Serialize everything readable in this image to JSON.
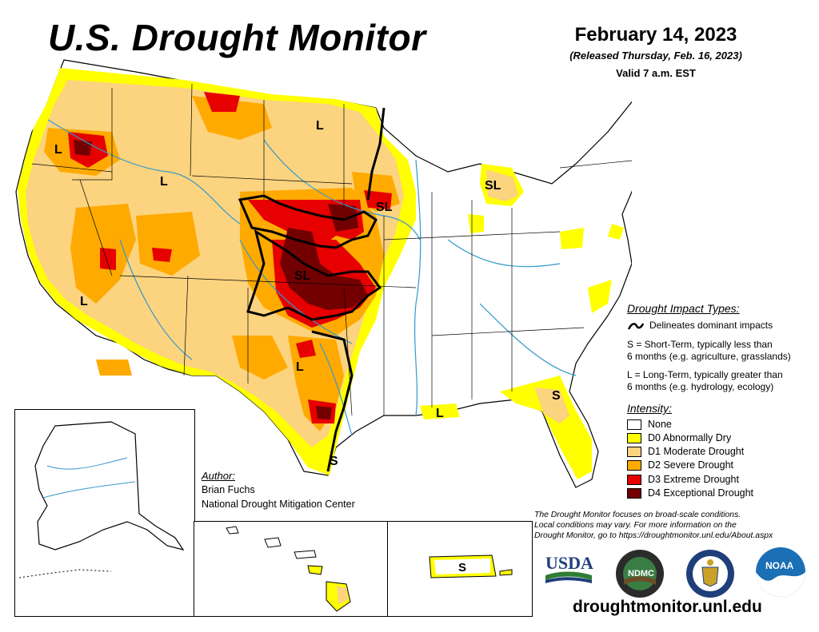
{
  "header": {
    "title": "U.S. Drought Monitor",
    "date": "February 14, 2023",
    "released": "(Released Thursday, Feb. 16, 2023)",
    "valid": "Valid 7 a.m. EST"
  },
  "map": {
    "impact_labels": [
      "L",
      "L",
      "L",
      "L",
      "L",
      "L",
      "L",
      "L",
      "S",
      "S",
      "S",
      "SL",
      "SL",
      "SL"
    ]
  },
  "impact_legend": {
    "title": "Drought Impact Types:",
    "line_label": "Delineates dominant impacts",
    "short_term_line1": "S = Short-Term, typically less than",
    "short_term_line2": "6 months (e.g. agriculture, grasslands)",
    "long_term_line1": "L = Long-Term, typically greater than",
    "long_term_line2": "6 months (e.g. hydrology, ecology)"
  },
  "intensity_legend": {
    "title": "Intensity:",
    "items": [
      {
        "label": "None",
        "color": "#ffffff"
      },
      {
        "label": "D0 Abnormally Dry",
        "color": "#ffff00"
      },
      {
        "label": "D1 Moderate Drought",
        "color": "#fcd37f"
      },
      {
        "label": "D2 Severe Drought",
        "color": "#ffaa00"
      },
      {
        "label": "D3 Extreme Drought",
        "color": "#e60000"
      },
      {
        "label": "D4 Exceptional Drought",
        "color": "#730000"
      }
    ]
  },
  "author": {
    "label": "Author:",
    "name": "Brian Fuchs",
    "organization": "National Drought Mitigation Center"
  },
  "disclaimer": {
    "line1": "The Drought Monitor focuses on broad-scale conditions.",
    "line2": "Local conditions may vary. For more information on the",
    "line3": "Drought Monitor, go to https://droughtmonitor.unl.edu/About.aspx"
  },
  "logos": {
    "usda": "USDA",
    "ndmc": "NDMC",
    "noaa": "NOAA"
  },
  "footer": {
    "website": "droughtmonitor.unl.edu"
  },
  "colors": {
    "water": "#3399cc",
    "border": "#000000"
  }
}
